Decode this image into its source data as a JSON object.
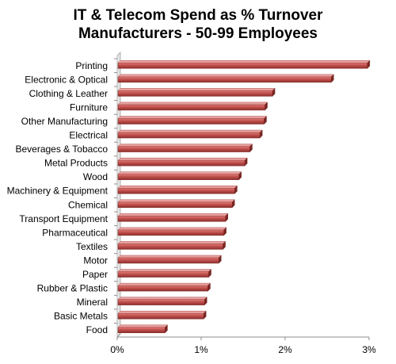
{
  "chart_data": {
    "type": "bar",
    "orientation": "horizontal",
    "title_lines": [
      "IT & Telecom Spend as % Turnover",
      "Manufacturers - 50-99 Employees"
    ],
    "categories": [
      "Printing",
      "Electronic & Optical",
      "Clothing & Leather",
      "Furniture",
      "Other Manufacturing",
      "Electrical",
      "Beverages & Tobacco",
      "Metal Products",
      "Wood",
      "Machinery & Equipment",
      "Chemical",
      "Transport Equipment",
      "Pharmaceutical",
      "Textiles",
      "Motor",
      "Paper",
      "Rubber & Plastic",
      "Mineral",
      "Basic Metals",
      "Food"
    ],
    "values": [
      2.98,
      2.55,
      1.85,
      1.76,
      1.75,
      1.7,
      1.58,
      1.52,
      1.45,
      1.4,
      1.37,
      1.29,
      1.27,
      1.26,
      1.21,
      1.09,
      1.08,
      1.04,
      1.03,
      0.57
    ],
    "xlim": [
      0,
      3
    ],
    "x_ticks": [
      0,
      1,
      2,
      3
    ],
    "x_tick_labels": [
      "0%",
      "1%",
      "2%",
      "3%"
    ],
    "bar_color": "#c0504d",
    "grid": false
  }
}
